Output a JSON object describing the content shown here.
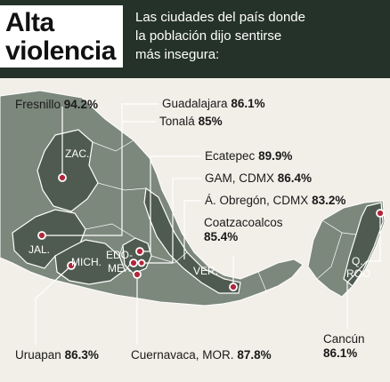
{
  "title_lines": [
    "Alta",
    "violencia"
  ],
  "subtitle_lines": [
    "Las ciudades del país donde",
    "la población dijo sentirse",
    "más insegura:"
  ],
  "colors": {
    "header": "#253229",
    "land": "#7c887c",
    "land_dark": "#4f5b50",
    "water": "#f2efe8",
    "marker": "#b3263a",
    "border": "#ffffff"
  },
  "cities": [
    {
      "name": "Fresnillo",
      "value": "94.2%"
    },
    {
      "name": "Guadalajara",
      "value": "86.1%"
    },
    {
      "name": "Tonalá",
      "value": "85%"
    },
    {
      "name": "Ecatepec",
      "value": "89.9%"
    },
    {
      "name": "GAM, CDMX",
      "value": "86.4%"
    },
    {
      "name": "Á. Obregón, CDMX",
      "value": "83.2%"
    },
    {
      "name": "Coatzacoalcos",
      "value": "85.4%"
    },
    {
      "name": "Uruapan",
      "value": "86.3%"
    },
    {
      "name": "Cuernavaca, MOR.",
      "value": "87.8%"
    },
    {
      "name": "Cancún",
      "value": "86.1%"
    }
  ],
  "states": {
    "zac": "ZAC.",
    "jal": "JAL.",
    "mich": "MICH.",
    "edo": "EDO-",
    "mex": "MEX",
    "ver": "VER.",
    "qroo_1": "Q.",
    "qroo_2": "ROO"
  }
}
